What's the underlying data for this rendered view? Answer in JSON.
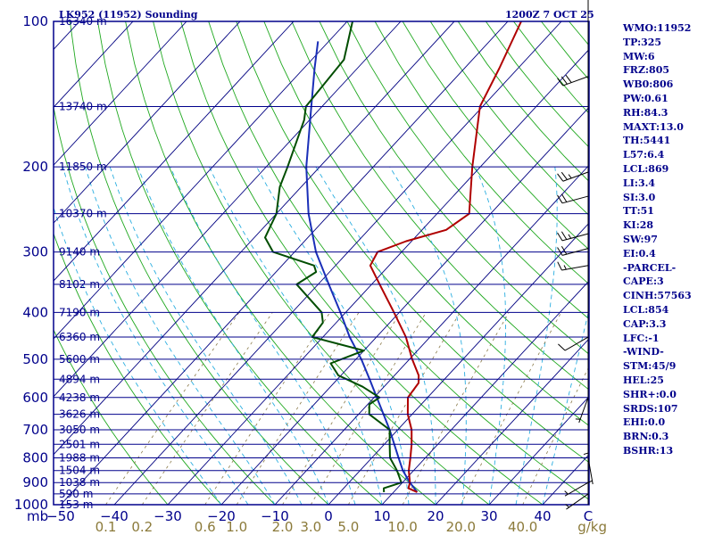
{
  "header": {
    "station": "LK952 (11952) Sounding",
    "time": "1200Z  7 OCT 25"
  },
  "indices": [
    "WMO:11952",
    "TP:325",
    "MW:6",
    "FRZ:805",
    "WB0:806",
    "PW:0.61",
    "RH:84.3",
    "MAXT:13.0",
    "TH:5441",
    "L57:6.4",
    "LCL:869",
    "LI:3.4",
    "SI:3.0",
    "TT:51",
    "KI:28",
    "SW:97",
    "EI:0.4",
    "-PARCEL-",
    "CAPE:3",
    "CINH:57563",
    "LCL:854",
    "CAP:3.3",
    "LFC:-1",
    "-WIND-",
    "STM:45/9",
    "HEL:25",
    "SHR+:0.0",
    "SRDS:107",
    "EHI:0.0",
    "BRN:0.3",
    "BSHR:13"
  ],
  "colors": {
    "isobar": "#00008b",
    "isotherm": "#000080",
    "dry_adiabat": "#1fa81f",
    "moist_adiabat": "#2aaee0",
    "mixing_ratio": "#8a7a4a",
    "temperature": "#b00000",
    "dewpoint": "#004d00",
    "parcel": "#1a2fb8",
    "mixing_label": "#8b7a3a"
  },
  "chart_data": {
    "type": "skew-t",
    "pressure_axis_unit": "mb",
    "temperature_axis_unit": "C",
    "mixing_ratio_unit": "g/kg",
    "pressure_ticks": [
      100,
      200,
      300,
      400,
      500,
      600,
      700,
      800,
      900,
      1000
    ],
    "temperature_ticks": [
      -50,
      -40,
      -30,
      -20,
      -10,
      0,
      10,
      20,
      30,
      40
    ],
    "mixing_ratio_labels": [
      "0.1",
      "0.2",
      "0.6",
      "1.0",
      "2.0",
      "3.0",
      "5.0",
      "10.0",
      "20.0",
      "40.0"
    ],
    "mixing_ratio_values": [
      0.1,
      0.2,
      0.6,
      1.0,
      2.0,
      3.0,
      5.0,
      10.0,
      20.0,
      40.0
    ],
    "height_levels": [
      {
        "p": 100,
        "label": "16340 m"
      },
      {
        "p": 150,
        "label": "13740 m"
      },
      {
        "p": 200,
        "label": "11850 m"
      },
      {
        "p": 250,
        "label": "10370 m"
      },
      {
        "p": 300,
        "label": "9140 m"
      },
      {
        "p": 350,
        "label": "8102 m"
      },
      {
        "p": 400,
        "label": "7190 m"
      },
      {
        "p": 450,
        "label": "6360 m"
      },
      {
        "p": 500,
        "label": "5600 m"
      },
      {
        "p": 550,
        "label": "4894 m"
      },
      {
        "p": 600,
        "label": "4238 m"
      },
      {
        "p": 650,
        "label": "3626 m"
      },
      {
        "p": 700,
        "label": "3050 m"
      },
      {
        "p": 750,
        "label": "2501 m"
      },
      {
        "p": 800,
        "label": "1988 m"
      },
      {
        "p": 850,
        "label": "1504 m"
      },
      {
        "p": 900,
        "label": "1038 m"
      },
      {
        "p": 950,
        "label": "590 m"
      },
      {
        "p": 1000,
        "label": "153 m"
      }
    ],
    "temperature": [
      [
        942,
        14.4
      ],
      [
        925,
        12.1
      ],
      [
        900,
        11.4
      ],
      [
        850,
        9.1
      ],
      [
        800,
        7.2
      ],
      [
        750,
        5.1
      ],
      [
        700,
        2.6
      ],
      [
        650,
        -0.8
      ],
      [
        600,
        -3.7
      ],
      [
        560,
        -4.2
      ],
      [
        540,
        -5.5
      ],
      [
        500,
        -9.5
      ],
      [
        450,
        -14.5
      ],
      [
        400,
        -21.0
      ],
      [
        350,
        -28.5
      ],
      [
        320,
        -33.5
      ],
      [
        300,
        -34.5
      ],
      [
        285,
        -31.0
      ],
      [
        270,
        -25.5
      ],
      [
        250,
        -24.0
      ],
      [
        200,
        -31.5
      ],
      [
        150,
        -40.5
      ],
      [
        125,
        -43.5
      ],
      [
        100,
        -47.5
      ]
    ],
    "dewpoint": [
      [
        942,
        8.2
      ],
      [
        925,
        7.5
      ],
      [
        900,
        9.8
      ],
      [
        850,
        6.9
      ],
      [
        800,
        3.4
      ],
      [
        750,
        1.0
      ],
      [
        700,
        -1.5
      ],
      [
        650,
        -8.0
      ],
      [
        620,
        -9.7
      ],
      [
        600,
        -9.0
      ],
      [
        570,
        -14.0
      ],
      [
        540,
        -20.5
      ],
      [
        510,
        -24.0
      ],
      [
        480,
        -20.0
      ],
      [
        450,
        -32.0
      ],
      [
        420,
        -32.5
      ],
      [
        400,
        -34.5
      ],
      [
        350,
        -44.0
      ],
      [
        330,
        -42.5
      ],
      [
        320,
        -44.0
      ],
      [
        300,
        -54.0
      ],
      [
        280,
        -58.0
      ],
      [
        250,
        -60.0
      ],
      [
        220,
        -64.0
      ],
      [
        200,
        -66.0
      ],
      [
        160,
        -71.0
      ],
      [
        150,
        -73.0
      ],
      [
        120,
        -74.0
      ],
      [
        100,
        -79.0
      ]
    ],
    "parcel": [
      [
        942,
        14.4
      ],
      [
        900,
        11.4
      ],
      [
        869,
        9.3
      ],
      [
        850,
        8.0
      ],
      [
        800,
        5.0
      ],
      [
        700,
        -1.5
      ],
      [
        600,
        -9.5
      ],
      [
        550,
        -14.0
      ],
      [
        500,
        -19.0
      ],
      [
        450,
        -25.0
      ],
      [
        400,
        -31.0
      ],
      [
        350,
        -38.0
      ],
      [
        300,
        -46.0
      ],
      [
        250,
        -54.0
      ],
      [
        200,
        -62.5
      ],
      [
        150,
        -72.0
      ],
      [
        125,
        -78.0
      ],
      [
        110,
        -82.0
      ]
    ],
    "wind_barbs": [
      {
        "p": 130,
        "dir": 250,
        "spd": 30
      },
      {
        "p": 205,
        "dir": 250,
        "spd": 25
      },
      {
        "p": 230,
        "dir": 255,
        "spd": 20
      },
      {
        "p": 275,
        "dir": 255,
        "spd": 25
      },
      {
        "p": 295,
        "dir": 255,
        "spd": 20
      },
      {
        "p": 320,
        "dir": 260,
        "spd": 15
      },
      {
        "p": 450,
        "dir": 240,
        "spd": 10
      },
      {
        "p": 600,
        "dir": 200,
        "spd": 5
      },
      {
        "p": 700,
        "dir": 180,
        "spd": 5
      },
      {
        "p": 800,
        "dir": 170,
        "spd": 5
      },
      {
        "p": 900,
        "dir": 240,
        "spd": 5
      },
      {
        "p": 950,
        "dir": 235,
        "spd": 5
      }
    ]
  }
}
